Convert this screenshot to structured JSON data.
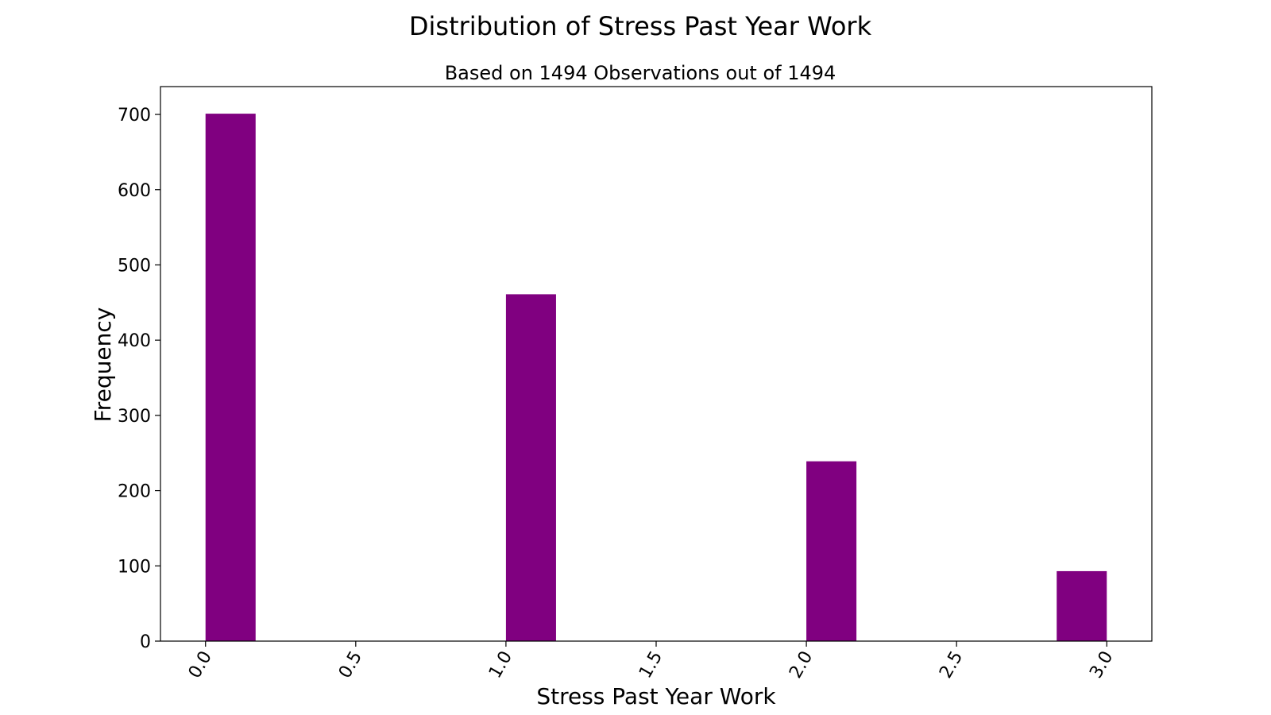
{
  "chart_data": {
    "type": "bar",
    "title": "Distribution of Stress Past Year Work",
    "subtitle": "Based on 1494 Observations out of 1494",
    "xlabel": "Stress Past Year Work",
    "ylabel": "Frequency",
    "xlim": [
      -0.15,
      3.15
    ],
    "ylim": [
      0,
      737
    ],
    "xticks": [
      0.0,
      0.5,
      1.0,
      1.5,
      2.0,
      2.5,
      3.0
    ],
    "xtick_labels": [
      "0.0",
      "0.5",
      "1.0",
      "1.5",
      "2.0",
      "2.5",
      "3.0"
    ],
    "yticks": [
      0,
      100,
      200,
      300,
      400,
      500,
      600,
      700
    ],
    "ytick_labels": [
      "0",
      "100",
      "200",
      "300",
      "400",
      "500",
      "600",
      "700"
    ],
    "bins": [
      {
        "start": 0.0,
        "end": 0.1667,
        "value": 701
      },
      {
        "start": 1.0,
        "end": 1.1667,
        "value": 461
      },
      {
        "start": 2.0,
        "end": 2.1667,
        "value": 239
      },
      {
        "start": 2.8333,
        "end": 3.0,
        "value": 93
      }
    ],
    "bar_color": "#800080",
    "grid": false,
    "legend": "none"
  }
}
